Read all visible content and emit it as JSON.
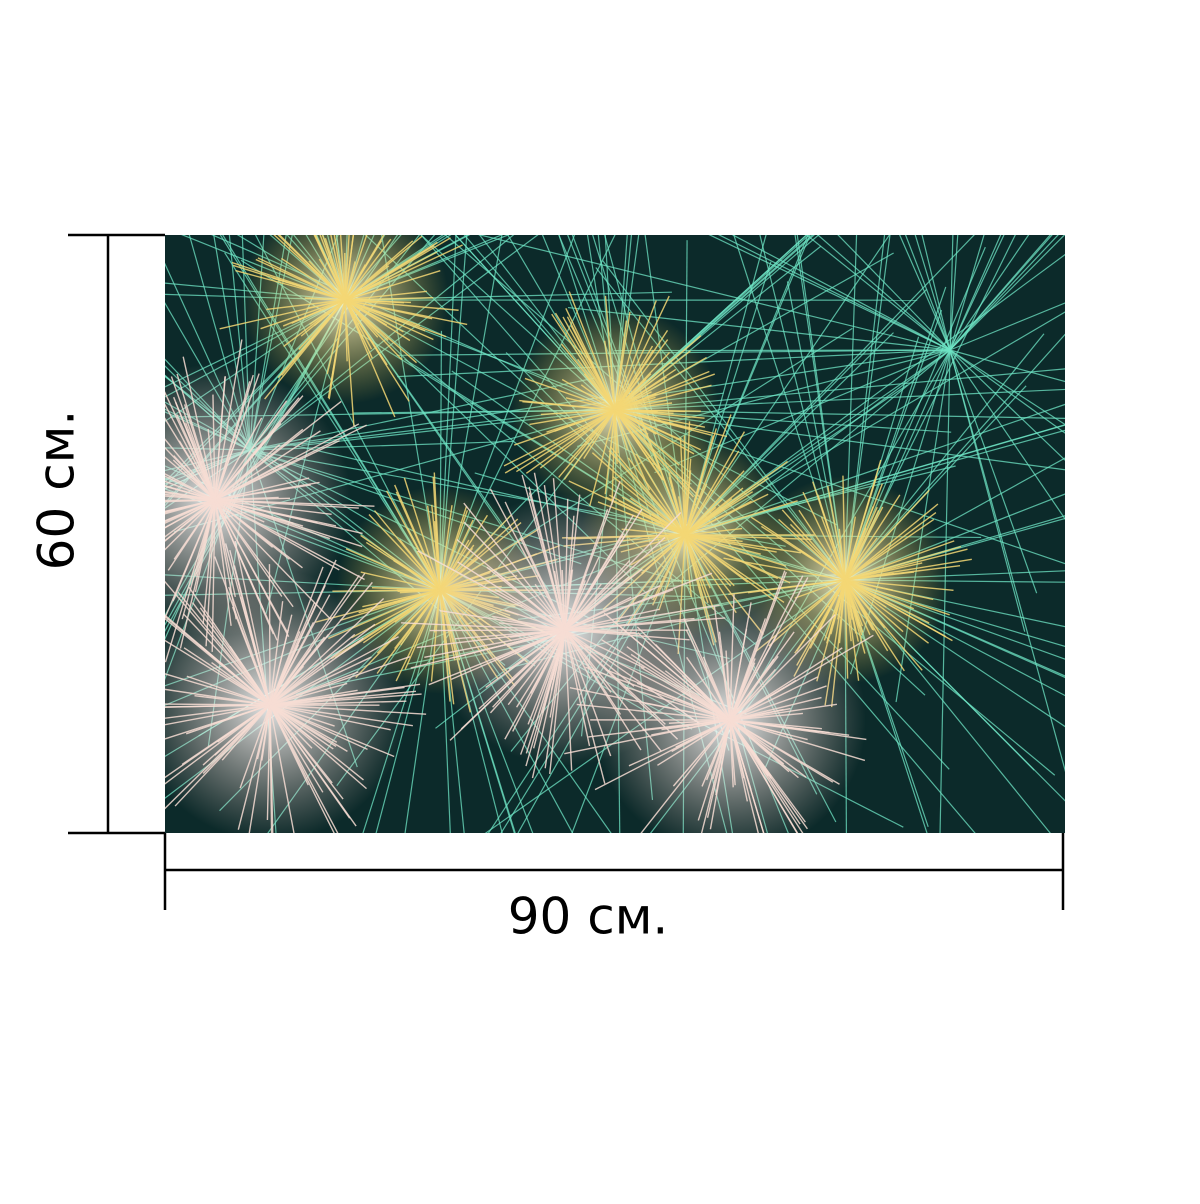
{
  "dimensions": {
    "height": "60 см.",
    "width": "90 см."
  }
}
